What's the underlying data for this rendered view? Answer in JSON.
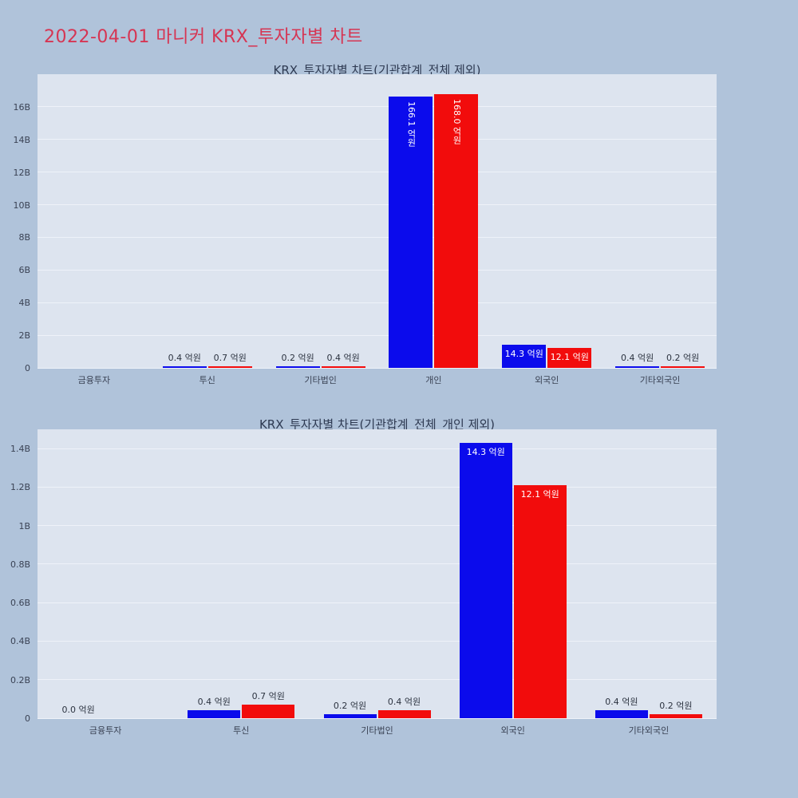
{
  "page": {
    "title": "2022-04-01 마니커 KRX_투자자별 차트",
    "title_color": "#d63553",
    "background": "#b0c3da",
    "plot_background": "#dde4ef"
  },
  "chart_data": [
    {
      "type": "bar",
      "title": "KRX_투자자별 차트(기관합계_전체 제외)",
      "unit": "B (won)",
      "categories": [
        "금융투자",
        "투신",
        "기타법인",
        "개인",
        "외국인",
        "기타외국인"
      ],
      "ylim": [
        0,
        18
      ],
      "grid": true,
      "legend": "none",
      "yticks": [
        {
          "v": 0,
          "label": "0"
        },
        {
          "v": 2,
          "label": "2B"
        },
        {
          "v": 4,
          "label": "4B"
        },
        {
          "v": 6,
          "label": "6B"
        },
        {
          "v": 8,
          "label": "8B"
        },
        {
          "v": 10,
          "label": "10B"
        },
        {
          "v": 12,
          "label": "12B"
        },
        {
          "v": 14,
          "label": "14B"
        },
        {
          "v": 16,
          "label": "16B"
        }
      ],
      "series": [
        {
          "name": "blue-series",
          "color": "#0b0bec",
          "values": [
            0,
            0.04,
            0.02,
            16.61,
            1.43,
            0.04
          ],
          "labels": [
            "",
            "0.4 억원",
            "0.2 억원",
            "166.1 억원",
            "14.3 억원",
            "0.4 억원"
          ],
          "label_pos": [
            "none",
            "above",
            "above",
            "inside-vertical",
            "inside",
            "above"
          ]
        },
        {
          "name": "red-series",
          "color": "#f20c0c",
          "values": [
            0,
            0.07,
            0.04,
            16.8,
            1.21,
            0.02
          ],
          "labels": [
            "",
            "0.7 억원",
            "0.4 억원",
            "168.0 억원",
            "12.1 억원",
            "0.2 억원"
          ],
          "label_pos": [
            "none",
            "above",
            "above",
            "inside-vertical",
            "inside",
            "above"
          ]
        }
      ]
    },
    {
      "type": "bar",
      "title": "KRX_투자자별 차트(기관합계_전체_개인 제외)",
      "unit": "B (won)",
      "categories": [
        "금융투자",
        "투신",
        "기타법인",
        "외국인",
        "기타외국인"
      ],
      "ylim": [
        0,
        1.5
      ],
      "grid": true,
      "legend": "none",
      "yticks": [
        {
          "v": 0,
          "label": "0"
        },
        {
          "v": 0.2,
          "label": "0.2B"
        },
        {
          "v": 0.4,
          "label": "0.4B"
        },
        {
          "v": 0.6,
          "label": "0.6B"
        },
        {
          "v": 0.8,
          "label": "0.8B"
        },
        {
          "v": 1.0,
          "label": "1B"
        },
        {
          "v": 1.2,
          "label": "1.2B"
        },
        {
          "v": 1.4,
          "label": "1.4B"
        }
      ],
      "series": [
        {
          "name": "blue-series",
          "color": "#0b0bec",
          "values": [
            0,
            0.04,
            0.02,
            1.43,
            0.04
          ],
          "labels": [
            "0.0 억원",
            "0.4 억원",
            "0.2 억원",
            "14.3 억원",
            "0.4 억원"
          ],
          "label_pos": [
            "above",
            "above",
            "above",
            "inside",
            "above"
          ]
        },
        {
          "name": "red-series",
          "color": "#f20c0c",
          "values": [
            0,
            0.07,
            0.04,
            1.21,
            0.02
          ],
          "labels": [
            "",
            "0.7 억원",
            "0.4 억원",
            "12.1 억원",
            "0.2 억원"
          ],
          "label_pos": [
            "none",
            "above",
            "above",
            "inside",
            "above"
          ]
        }
      ]
    }
  ]
}
